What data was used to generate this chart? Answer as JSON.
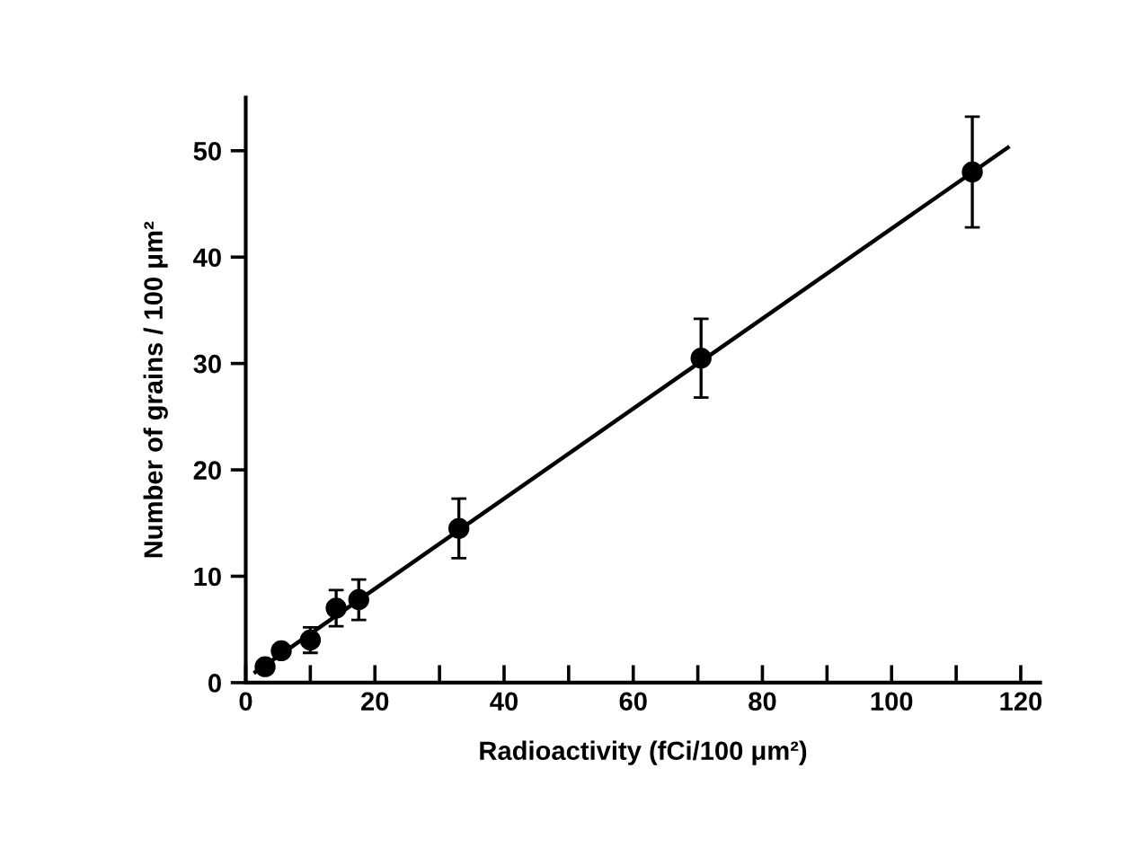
{
  "chart_data": {
    "type": "scatter",
    "xlabel": "Radioactivity (fCi/100 μm²)",
    "ylabel": "Number of grains / 100 μm²",
    "xlim": [
      0,
      123
    ],
    "ylim": [
      0,
      55
    ],
    "xticks": [
      0,
      {
        "value": 10,
        "label": null
      },
      20,
      {
        "value": 30,
        "label": null
      },
      40,
      {
        "value": 50,
        "label": null
      },
      60,
      {
        "value": 70,
        "label": null
      },
      80,
      {
        "value": 90,
        "label": null
      },
      100,
      {
        "value": 110,
        "label": null
      },
      120
    ],
    "yticks": [
      0,
      10,
      20,
      30,
      40,
      50
    ],
    "grid": false,
    "legend": false,
    "series": [
      {
        "marker": "circle",
        "color": "#000000",
        "x": [
          3,
          5.5,
          10,
          14,
          17.5,
          33,
          70.5,
          112.5
        ],
        "values": [
          1.5,
          3,
          4,
          7,
          7.8,
          14.5,
          30.5,
          48
        ],
        "errors": [
          null,
          null,
          1.2,
          1.7,
          1.9,
          2.8,
          3.7,
          5.2
        ]
      },
      {
        "type": "line",
        "color": "#000000",
        "x": [
          1.5,
          118
        ],
        "values": [
          1,
          50.3
        ],
        "line_style": "solid",
        "marker": "none"
      }
    ]
  }
}
